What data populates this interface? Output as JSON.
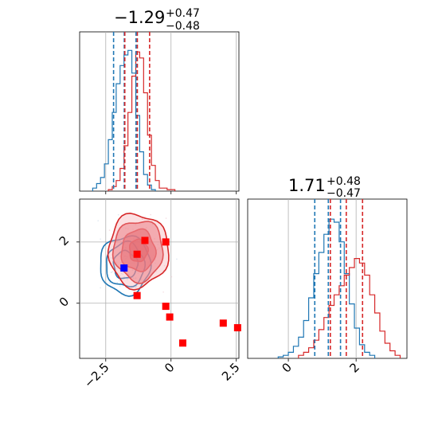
{
  "chart_data": [
    {
      "type": "histogram",
      "panel": "top-left",
      "title": {
        "value": "−1.29",
        "plus": "+0.47",
        "minus": "−0.48"
      },
      "xlim": [
        -3.5,
        2.6
      ],
      "xticks": [
        -2.5,
        0.0,
        2.5
      ],
      "grid": true,
      "series": [
        {
          "color": "#1f77b4",
          "bin_edges": [
            -3.0,
            -2.85,
            -2.7,
            -2.55,
            -2.4,
            -2.25,
            -2.1,
            -1.95,
            -1.8,
            -1.65,
            -1.5,
            -1.35,
            -1.2,
            -1.05,
            -0.9,
            -0.75,
            -0.6
          ],
          "counts": [
            0.02,
            0.05,
            0.09,
            0.18,
            0.34,
            0.52,
            0.71,
            0.83,
            0.9,
            0.93,
            0.78,
            0.5,
            0.26,
            0.11,
            0.04,
            0.01
          ],
          "quantiles": [
            -2.2,
            -1.79,
            -1.34
          ]
        },
        {
          "color": "#d62728",
          "bin_edges": [
            -2.4,
            -2.25,
            -2.1,
            -1.95,
            -1.8,
            -1.65,
            -1.5,
            -1.35,
            -1.2,
            -1.05,
            -0.9,
            -0.75,
            -0.6,
            -0.45,
            -0.3,
            -0.15,
            0.0,
            0.15
          ],
          "counts": [
            0.01,
            0.03,
            0.07,
            0.15,
            0.3,
            0.52,
            0.76,
            0.92,
            0.88,
            0.65,
            0.37,
            0.17,
            0.07,
            0.02,
            0.02,
            0.01,
            0.01
          ],
          "quantiles": [
            -1.77,
            -1.29,
            -0.82
          ]
        }
      ]
    },
    {
      "type": "histogram",
      "panel": "bottom-right",
      "title": {
        "value": "1.71",
        "plus": "+0.48",
        "minus": "−0.47"
      },
      "xlim": [
        -1.2,
        3.5
      ],
      "xticks": [
        0,
        2
      ],
      "grid": true,
      "series": [
        {
          "color": "#1f77b4",
          "bin_edges": [
            -0.3,
            -0.15,
            0.0,
            0.15,
            0.3,
            0.45,
            0.6,
            0.75,
            0.9,
            1.05,
            1.2,
            1.35,
            1.5,
            1.65,
            1.8,
            1.95,
            2.1,
            2.25,
            2.4,
            2.55
          ],
          "counts": [
            0.01,
            0.02,
            0.04,
            0.08,
            0.14,
            0.25,
            0.4,
            0.56,
            0.7,
            0.82,
            0.92,
            0.9,
            0.77,
            0.56,
            0.36,
            0.2,
            0.09,
            0.04,
            0.02
          ],
          "quantiles": [
            0.78,
            1.18,
            1.54
          ]
        },
        {
          "color": "#d62728",
          "bin_edges": [
            0.3,
            0.45,
            0.6,
            0.75,
            0.9,
            1.05,
            1.2,
            1.35,
            1.5,
            1.65,
            1.8,
            1.95,
            2.1,
            2.25,
            2.4,
            2.55,
            2.7,
            2.85,
            3.0,
            3.15,
            3.3
          ],
          "counts": [
            0.02,
            0.04,
            0.07,
            0.12,
            0.19,
            0.27,
            0.35,
            0.42,
            0.48,
            0.55,
            0.6,
            0.66,
            0.63,
            0.55,
            0.42,
            0.3,
            0.18,
            0.1,
            0.05,
            0.02
          ],
          "quantiles": [
            1.24,
            1.71,
            2.19
          ]
        }
      ]
    },
    {
      "type": "scatter",
      "panel": "bottom-left",
      "xlim": [
        -3.5,
        2.6
      ],
      "ylim": [
        -1.8,
        3.4
      ],
      "xticks": [
        -2.5,
        0.0,
        2.5
      ],
      "yticks": [
        0,
        2
      ],
      "grid": true,
      "contour_sets": [
        {
          "color": "#1f77b4",
          "center": [
            -1.75,
            1.25
          ],
          "sigma": [
            0.46,
            0.45
          ],
          "levels": [
            1.0,
            1.6,
            2.1
          ]
        },
        {
          "color": "#d62728",
          "center": [
            -1.25,
            1.72
          ],
          "sigma": [
            0.5,
            0.52
          ],
          "levels": [
            0.7,
            1.3,
            1.9,
            2.3
          ]
        }
      ],
      "points": [
        {
          "x": -1.0,
          "y": 2.05,
          "color": "#ff0000"
        },
        {
          "x": -0.2,
          "y": 2.0,
          "color": "#ff0000"
        },
        {
          "x": -1.3,
          "y": 1.6,
          "color": "#ff0000"
        },
        {
          "x": -1.8,
          "y": 1.15,
          "color": "#0000ff"
        },
        {
          "x": -1.3,
          "y": 0.25,
          "color": "#ff0000"
        },
        {
          "x": -0.2,
          "y": -0.1,
          "color": "#ff0000"
        },
        {
          "x": -0.05,
          "y": -0.45,
          "color": "#ff0000"
        },
        {
          "x": 2.0,
          "y": -0.65,
          "color": "#ff0000"
        },
        {
          "x": 2.55,
          "y": -0.8,
          "color": "#ff0000"
        },
        {
          "x": 0.45,
          "y": -1.3,
          "color": "#ff0000"
        }
      ]
    }
  ]
}
